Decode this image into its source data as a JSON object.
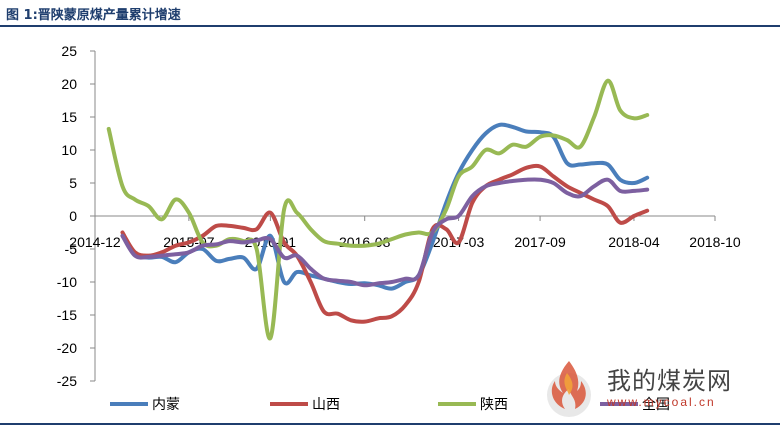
{
  "title": "图 1:晋陕蒙原煤产量累计增速",
  "watermark": {
    "text": "我的煤炭网",
    "url": "www.mycoal.cn"
  },
  "chart_data": {
    "type": "line",
    "title": "图 1:晋陕蒙原煤产量累计增速",
    "xlabel": "",
    "ylabel": "",
    "x_ticks": [
      "2014-12",
      "2015-07",
      "2016-01",
      "2016-08",
      "2017-03",
      "2017-09",
      "2018-04",
      "2018-10"
    ],
    "y_ticks": [
      25,
      20,
      15,
      10,
      5,
      0,
      -5,
      -10,
      -15,
      -20,
      -25
    ],
    "ylim": [
      -25,
      25
    ],
    "xlim": [
      "2014-12-01",
      "2018-10-01"
    ],
    "grid": false,
    "legend_position": "bottom",
    "series": [
      {
        "name": "内蒙",
        "color": "#4a7ebb",
        "points": [
          [
            "2015-02-01",
            -3.0
          ],
          [
            "2015-03-01",
            -5.8
          ],
          [
            "2015-04-01",
            -6.3
          ],
          [
            "2015-05-01",
            -6.2
          ],
          [
            "2015-06-01",
            -7.0
          ],
          [
            "2015-07-01",
            -5.5
          ],
          [
            "2015-08-01",
            -5.0
          ],
          [
            "2015-09-01",
            -6.8
          ],
          [
            "2015-10-01",
            -6.5
          ],
          [
            "2015-11-01",
            -6.3
          ],
          [
            "2015-12-01",
            -8.0
          ],
          [
            "2016-01-01",
            -3.0
          ],
          [
            "2016-02-01",
            -10.0
          ],
          [
            "2016-03-01",
            -8.5
          ],
          [
            "2016-04-01",
            -9.0
          ],
          [
            "2016-05-01",
            -9.5
          ],
          [
            "2016-06-01",
            -10.0
          ],
          [
            "2016-07-01",
            -10.3
          ],
          [
            "2016-08-01",
            -10.2
          ],
          [
            "2016-09-01",
            -10.5
          ],
          [
            "2016-10-01",
            -11.0
          ],
          [
            "2016-11-01",
            -10.0
          ],
          [
            "2016-12-01",
            -9.0
          ],
          [
            "2017-01-01",
            -4.0
          ],
          [
            "2017-02-01",
            2.0
          ],
          [
            "2017-03-01",
            6.5
          ],
          [
            "2017-04-01",
            10.0
          ],
          [
            "2017-05-01",
            12.5
          ],
          [
            "2017-06-01",
            13.8
          ],
          [
            "2017-07-01",
            13.5
          ],
          [
            "2017-08-01",
            12.8
          ],
          [
            "2017-09-01",
            12.7
          ],
          [
            "2017-10-01",
            12.0
          ],
          [
            "2017-11-01",
            8.0
          ],
          [
            "2017-12-01",
            7.8
          ],
          [
            "2018-01-01",
            8.0
          ],
          [
            "2018-02-01",
            7.8
          ],
          [
            "2018-03-01",
            5.5
          ],
          [
            "2018-04-01",
            5.0
          ],
          [
            "2018-05-01",
            5.8
          ]
        ]
      },
      {
        "name": "山西",
        "color": "#be4b48",
        "points": [
          [
            "2015-02-01",
            -2.5
          ],
          [
            "2015-03-01",
            -5.5
          ],
          [
            "2015-04-01",
            -6.0
          ],
          [
            "2015-05-01",
            -5.5
          ],
          [
            "2015-06-01",
            -4.5
          ],
          [
            "2015-07-01",
            -4.0
          ],
          [
            "2015-08-01",
            -3.0
          ],
          [
            "2015-09-01",
            -1.5
          ],
          [
            "2015-10-01",
            -1.5
          ],
          [
            "2015-11-01",
            -1.8
          ],
          [
            "2015-12-01",
            -2.0
          ],
          [
            "2016-01-01",
            0.5
          ],
          [
            "2016-02-01",
            -4.0
          ],
          [
            "2016-03-01",
            -6.0
          ],
          [
            "2016-04-01",
            -10.0
          ],
          [
            "2016-05-01",
            -14.5
          ],
          [
            "2016-06-01",
            -14.8
          ],
          [
            "2016-07-01",
            -15.8
          ],
          [
            "2016-08-01",
            -16.0
          ],
          [
            "2016-09-01",
            -15.5
          ],
          [
            "2016-10-01",
            -15.2
          ],
          [
            "2016-11-01",
            -13.5
          ],
          [
            "2016-12-01",
            -10.0
          ],
          [
            "2017-01-01",
            -2.0
          ],
          [
            "2017-02-01",
            -2.0
          ],
          [
            "2017-03-01",
            -4.0
          ],
          [
            "2017-04-01",
            2.0
          ],
          [
            "2017-05-01",
            4.5
          ],
          [
            "2017-06-01",
            5.5
          ],
          [
            "2017-07-01",
            6.3
          ],
          [
            "2017-08-01",
            7.3
          ],
          [
            "2017-09-01",
            7.5
          ],
          [
            "2017-10-01",
            6.0
          ],
          [
            "2017-11-01",
            4.5
          ],
          [
            "2017-12-01",
            3.5
          ],
          [
            "2018-01-01",
            2.5
          ],
          [
            "2018-02-01",
            1.5
          ],
          [
            "2018-03-01",
            -1.0
          ],
          [
            "2018-04-01",
            0.0
          ],
          [
            "2018-05-01",
            0.8
          ]
        ]
      },
      {
        "name": "陕西",
        "color": "#98b954",
        "points": [
          [
            "2015-01-01",
            13.2
          ],
          [
            "2015-02-01",
            4.5
          ],
          [
            "2015-03-01",
            2.5
          ],
          [
            "2015-04-01",
            1.5
          ],
          [
            "2015-05-01",
            -0.5
          ],
          [
            "2015-06-01",
            2.5
          ],
          [
            "2015-07-01",
            0.5
          ],
          [
            "2015-08-01",
            -4.0
          ],
          [
            "2015-09-01",
            -4.5
          ],
          [
            "2015-10-01",
            -3.5
          ],
          [
            "2015-11-01",
            -3.8
          ],
          [
            "2015-12-01",
            -5.0
          ],
          [
            "2016-01-01",
            -18.5
          ],
          [
            "2016-02-01",
            1.0
          ],
          [
            "2016-03-01",
            0.5
          ],
          [
            "2016-04-01",
            -2.0
          ],
          [
            "2016-05-01",
            -3.8
          ],
          [
            "2016-06-01",
            -4.2
          ],
          [
            "2016-07-01",
            -4.5
          ],
          [
            "2016-08-01",
            -4.5
          ],
          [
            "2016-09-01",
            -4.2
          ],
          [
            "2016-10-01",
            -3.5
          ],
          [
            "2016-11-01",
            -2.8
          ],
          [
            "2016-12-01",
            -2.5
          ],
          [
            "2017-01-01",
            -2.5
          ],
          [
            "2017-02-01",
            1.0
          ],
          [
            "2017-03-01",
            6.0
          ],
          [
            "2017-04-01",
            7.5
          ],
          [
            "2017-05-01",
            10.0
          ],
          [
            "2017-06-01",
            9.5
          ],
          [
            "2017-07-01",
            10.8
          ],
          [
            "2017-08-01",
            10.5
          ],
          [
            "2017-09-01",
            12.0
          ],
          [
            "2017-10-01",
            12.2
          ],
          [
            "2017-11-01",
            11.5
          ],
          [
            "2017-12-01",
            10.5
          ],
          [
            "2018-01-01",
            15.0
          ],
          [
            "2018-02-01",
            20.5
          ],
          [
            "2018-03-01",
            16.0
          ],
          [
            "2018-04-01",
            14.8
          ],
          [
            "2018-05-01",
            15.3
          ]
        ]
      },
      {
        "name": "全国",
        "color": "#7d60a0",
        "points": [
          [
            "2015-02-01",
            -3.0
          ],
          [
            "2015-03-01",
            -6.0
          ],
          [
            "2015-04-01",
            -6.2
          ],
          [
            "2015-05-01",
            -6.0
          ],
          [
            "2015-06-01",
            -5.8
          ],
          [
            "2015-07-01",
            -5.5
          ],
          [
            "2015-08-01",
            -4.5
          ],
          [
            "2015-09-01",
            -4.3
          ],
          [
            "2015-10-01",
            -3.8
          ],
          [
            "2015-11-01",
            -4.0
          ],
          [
            "2015-12-01",
            -3.7
          ],
          [
            "2016-01-01",
            -3.5
          ],
          [
            "2016-02-01",
            -6.3
          ],
          [
            "2016-03-01",
            -6.0
          ],
          [
            "2016-04-01",
            -8.0
          ],
          [
            "2016-05-01",
            -9.5
          ],
          [
            "2016-06-01",
            -9.8
          ],
          [
            "2016-07-01",
            -10.0
          ],
          [
            "2016-08-01",
            -10.5
          ],
          [
            "2016-09-01",
            -10.2
          ],
          [
            "2016-10-01",
            -10.0
          ],
          [
            "2016-11-01",
            -9.5
          ],
          [
            "2016-12-01",
            -9.0
          ],
          [
            "2017-01-01",
            -2.5
          ],
          [
            "2017-02-01",
            -0.5
          ],
          [
            "2017-03-01",
            0.0
          ],
          [
            "2017-04-01",
            3.0
          ],
          [
            "2017-05-01",
            4.5
          ],
          [
            "2017-06-01",
            5.0
          ],
          [
            "2017-07-01",
            5.3
          ],
          [
            "2017-08-01",
            5.5
          ],
          [
            "2017-09-01",
            5.5
          ],
          [
            "2017-10-01",
            5.0
          ],
          [
            "2017-11-01",
            3.5
          ],
          [
            "2017-12-01",
            3.0
          ],
          [
            "2018-01-01",
            4.5
          ],
          [
            "2018-02-01",
            5.5
          ],
          [
            "2018-03-01",
            3.8
          ],
          [
            "2018-04-01",
            3.8
          ],
          [
            "2018-05-01",
            4.0
          ]
        ]
      }
    ]
  }
}
